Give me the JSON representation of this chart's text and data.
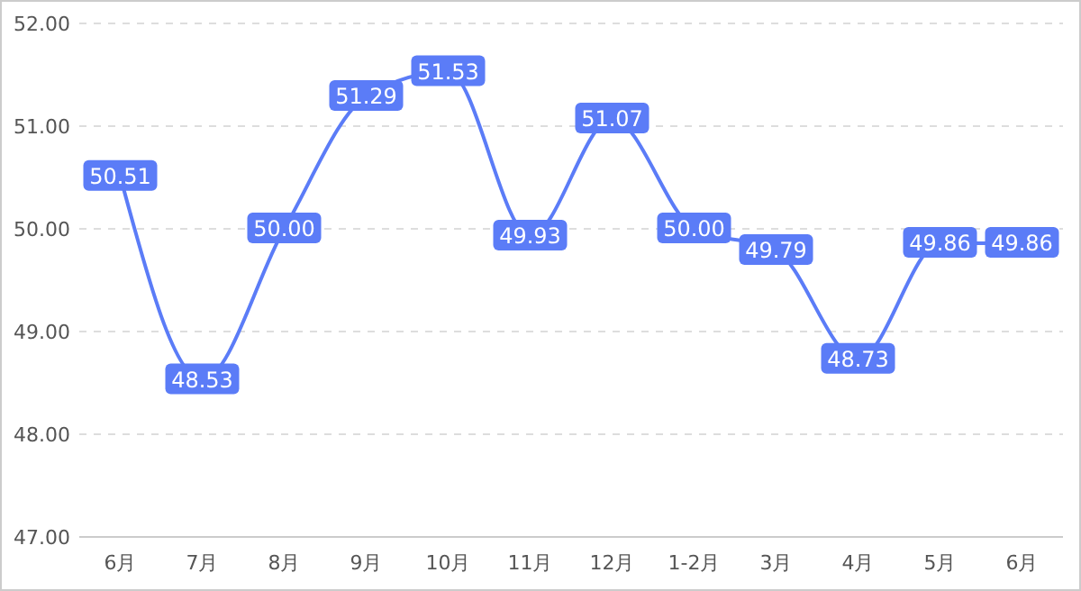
{
  "chart_data": {
    "type": "line",
    "categories": [
      "6月",
      "7月",
      "8月",
      "9月",
      "10月",
      "11月",
      "12月",
      "1-2月",
      "3月",
      "4月",
      "5月",
      "6月"
    ],
    "series": [
      {
        "color": "#5b7cf7",
        "values": [
          50.51,
          48.53,
          50.0,
          51.29,
          51.53,
          49.93,
          51.07,
          50.0,
          49.79,
          48.73,
          49.86,
          49.86
        ],
        "value_labels": [
          "50.51",
          "48.53",
          "50.00",
          "51.29",
          "51.53",
          "49.93",
          "51.07",
          "50.00",
          "49.79",
          "48.73",
          "49.86",
          "49.86"
        ]
      }
    ],
    "ylim": [
      47,
      52
    ],
    "yticks": [
      {
        "value": 47,
        "label": "47.00"
      },
      {
        "value": 48,
        "label": "48.00"
      },
      {
        "value": 49,
        "label": "49.00"
      },
      {
        "value": 50,
        "label": "50.00"
      },
      {
        "value": 51,
        "label": "51.00"
      },
      {
        "value": 52,
        "label": "52.00"
      }
    ],
    "grid": "y",
    "marker": "square",
    "line_style": "solid"
  }
}
